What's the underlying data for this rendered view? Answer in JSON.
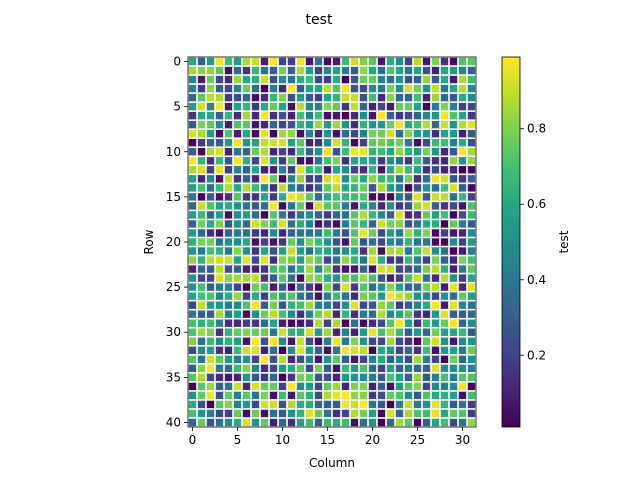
{
  "chart_data": {
    "type": "heatmap",
    "title": "test",
    "xlabel": "Column",
    "ylabel": "Row",
    "n_rows": 41,
    "n_cols": 32,
    "x_ticks": [
      0,
      5,
      10,
      15,
      20,
      25,
      30
    ],
    "y_ticks": [
      0,
      5,
      10,
      15,
      20,
      25,
      30,
      35,
      40
    ],
    "colorbar": {
      "label": "test",
      "vmin": 0.01,
      "vmax": 0.99,
      "ticks": [
        0.2,
        0.4,
        0.6,
        0.8
      ],
      "colormap": "viridis"
    },
    "cell_gap": "white grid lines between cells",
    "grid": false,
    "values_note": "41x32 cell values are not individually readable; pseudo-random values in [0.01, 0.99]",
    "seed": 7
  },
  "colors": {
    "viridis": [
      "#440154",
      "#482475",
      "#414487",
      "#355f8d",
      "#2a788e",
      "#21918c",
      "#22a884",
      "#44bf70",
      "#7ad151",
      "#bddf26",
      "#fde725"
    ]
  }
}
